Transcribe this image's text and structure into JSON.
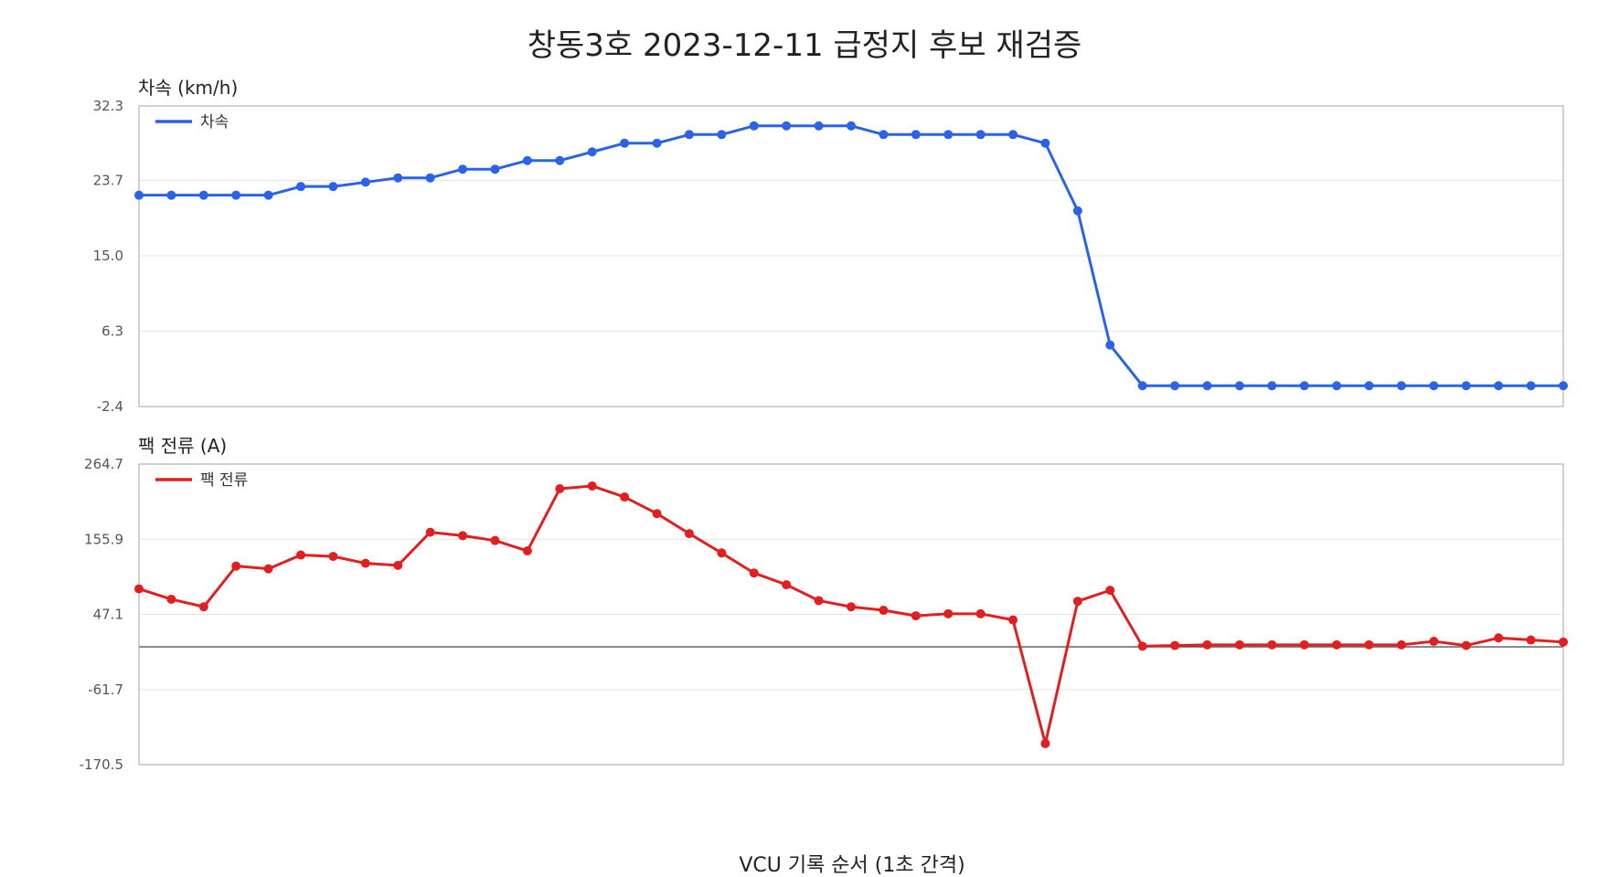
{
  "title": "창동3호 2023-12-11 급정지 후보 재검증",
  "xlabel": "VCU 기록 순서 (1초 간격)",
  "chart_data": [
    {
      "type": "line",
      "title": "차속 (km/h)",
      "legend": "top-left",
      "grid": true,
      "ylim": [
        -2.4,
        32.3
      ],
      "yticks": [
        "32.3",
        "23.7",
        "15.0",
        "6.3",
        "-2.4"
      ],
      "color": "#2a63e8",
      "series": [
        {
          "name": "차속",
          "values": [
            22.0,
            22.0,
            22.0,
            22.0,
            22.0,
            23.0,
            23.0,
            23.5,
            24.0,
            24.0,
            25.0,
            25.0,
            26.0,
            26.0,
            27.0,
            28.0,
            28.0,
            29.0,
            29.0,
            30.0,
            30.0,
            30.0,
            30.0,
            29.0,
            29.0,
            29.0,
            29.0,
            29.0,
            28.0,
            20.2,
            4.7,
            0.0,
            0.0,
            0.0,
            0.0,
            0.0,
            0.0,
            0.0,
            0.0,
            0.0,
            0.0,
            0.0,
            0.0,
            0.0,
            0.0
          ]
        }
      ]
    },
    {
      "type": "line",
      "title": "팩 전류 (A)",
      "legend": "top-left",
      "grid": true,
      "ylim": [
        -170.5,
        264.7
      ],
      "yticks": [
        "264.7",
        "155.9",
        "47.1",
        "-61.7",
        "-170.5"
      ],
      "zero_line": true,
      "color": "#e02020",
      "series": [
        {
          "name": "팩 전류",
          "values": [
            84,
            69,
            58,
            117,
            113,
            133,
            131,
            121,
            118,
            166,
            161,
            154,
            139,
            229,
            233,
            217,
            193,
            164,
            136,
            107,
            90,
            67,
            58,
            53,
            45,
            48,
            48,
            39,
            -140,
            66,
            82,
            1,
            2,
            3,
            3,
            3,
            3,
            3,
            3,
            3,
            8,
            2,
            13,
            10,
            7
          ]
        }
      ]
    }
  ]
}
